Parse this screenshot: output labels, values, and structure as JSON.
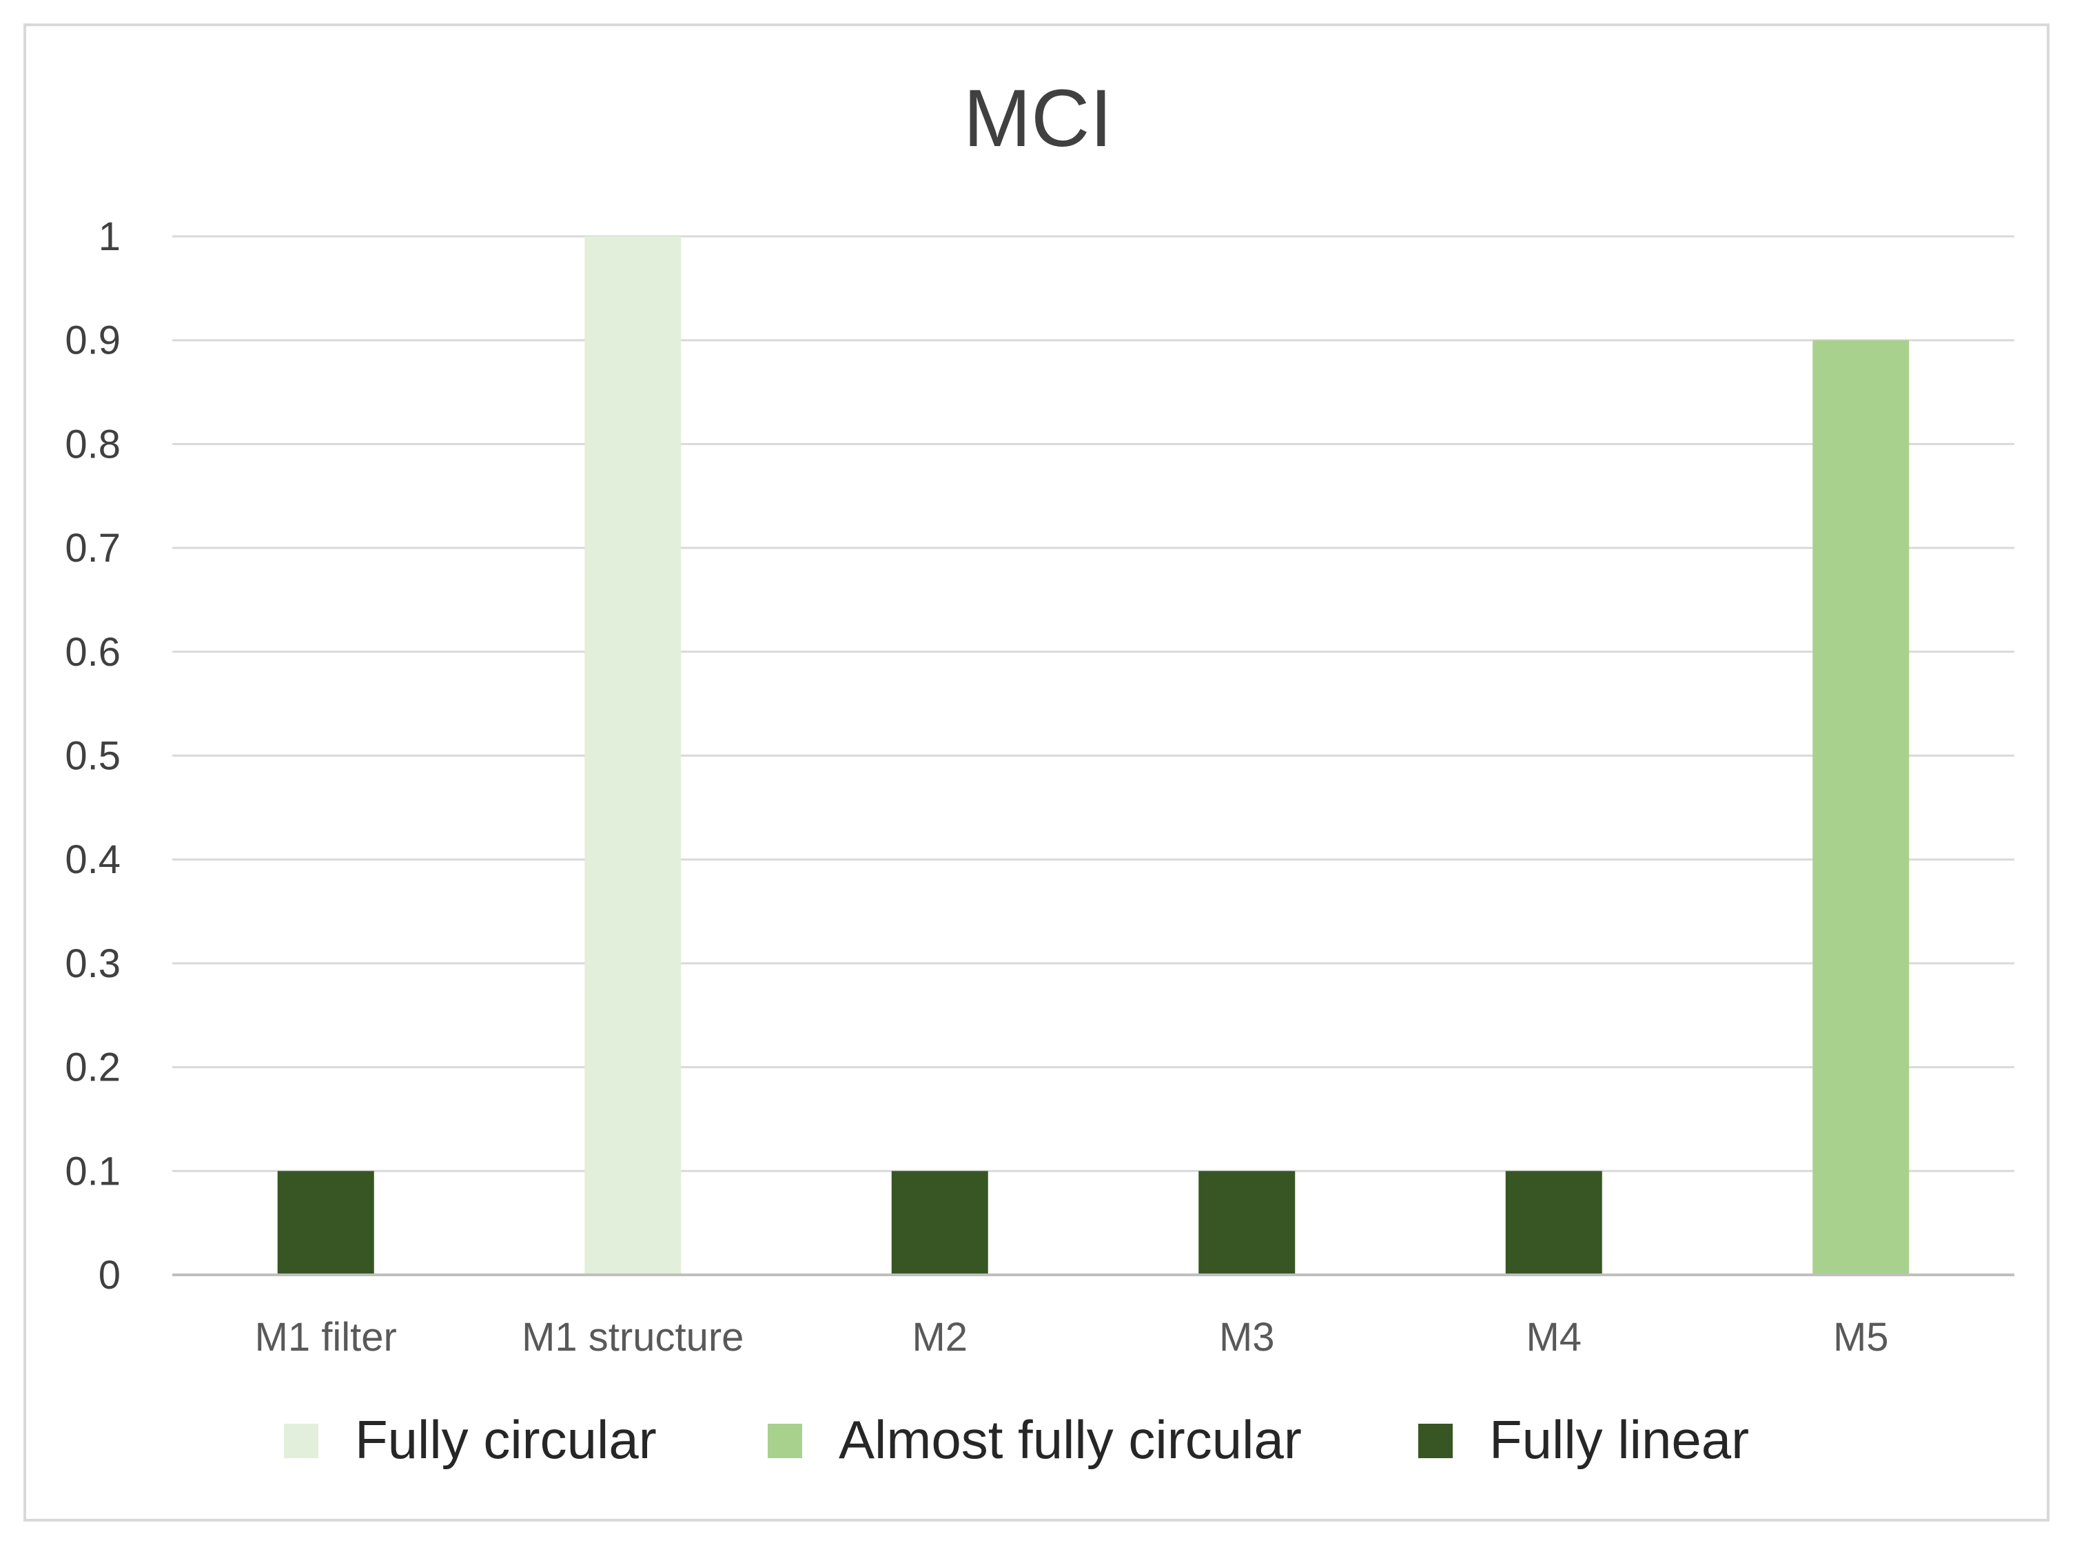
{
  "chart_data": {
    "type": "bar",
    "title": "MCI",
    "xlabel": "",
    "ylabel": "",
    "categories": [
      "M1 filter",
      "M1 structure",
      "M2",
      "M3",
      "M4",
      "M5"
    ],
    "values": [
      0.1,
      1,
      0.1,
      0.1,
      0.1,
      0.9
    ],
    "bar_series": [
      "Fully linear",
      "Fully circular",
      "Fully linear",
      "Fully linear",
      "Fully linear",
      "Almost fully circular"
    ],
    "series": [
      {
        "name": "Fully circular",
        "color": "#e2efda"
      },
      {
        "name": "Almost fully circular",
        "color": "#a9d18e"
      },
      {
        "name": "Fully linear",
        "color": "#375623"
      }
    ],
    "ylim": [
      0,
      1
    ],
    "yticks": [
      "0",
      "0.1",
      "0.2",
      "0.3",
      "0.4",
      "0.5",
      "0.6",
      "0.7",
      "0.8",
      "0.9",
      "1"
    ],
    "grid": true,
    "legend_position": "bottom"
  }
}
